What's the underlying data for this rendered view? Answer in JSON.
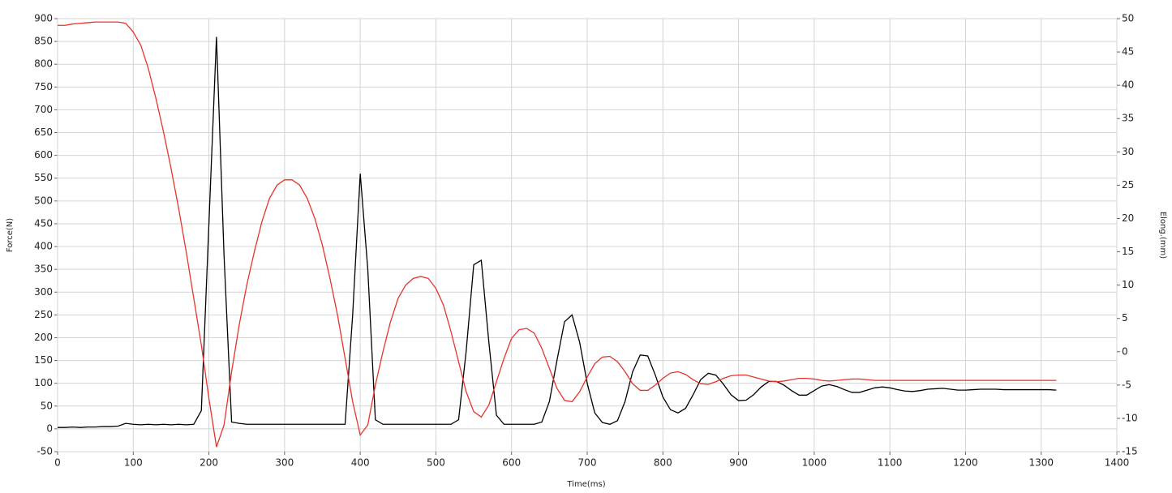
{
  "chart_data": {
    "type": "line",
    "x_label": "Time(ms)",
    "y_label": "Force(N)",
    "y2_label": "Elong.(mm)",
    "x": [
      0,
      10,
      20,
      30,
      40,
      50,
      60,
      70,
      80,
      90,
      100,
      110,
      120,
      130,
      140,
      150,
      160,
      170,
      180,
      190,
      200,
      210,
      220,
      230,
      240,
      250,
      260,
      270,
      280,
      290,
      300,
      310,
      320,
      330,
      340,
      350,
      360,
      370,
      380,
      390,
      400,
      410,
      420,
      430,
      440,
      450,
      460,
      470,
      480,
      490,
      500,
      510,
      520,
      530,
      540,
      550,
      560,
      570,
      580,
      590,
      600,
      610,
      620,
      630,
      640,
      650,
      660,
      670,
      680,
      690,
      700,
      710,
      720,
      730,
      740,
      750,
      760,
      770,
      780,
      790,
      800,
      810,
      820,
      830,
      840,
      850,
      860,
      870,
      880,
      890,
      900,
      910,
      920,
      930,
      940,
      950,
      960,
      970,
      980,
      990,
      1000,
      1010,
      1020,
      1030,
      1040,
      1050,
      1060,
      1070,
      1080,
      1090,
      1100,
      1110,
      1120,
      1130,
      1140,
      1150,
      1160,
      1170,
      1180,
      1190,
      1200,
      1210,
      1220,
      1230,
      1240,
      1250,
      1260,
      1270,
      1280,
      1290,
      1300,
      1310,
      1320
    ],
    "series": [
      {
        "color": "#000000",
        "values": [
          3,
          3,
          4,
          3,
          4,
          4,
          5,
          5,
          6,
          12,
          10,
          9,
          10,
          9,
          10,
          9,
          10,
          9,
          10,
          40,
          450,
          860,
          380,
          15,
          12,
          10,
          10,
          10,
          10,
          10,
          10,
          10,
          10,
          10,
          10,
          10,
          10,
          10,
          10,
          250,
          560,
          350,
          20,
          10,
          10,
          10,
          10,
          10,
          10,
          10,
          10,
          10,
          10,
          20,
          170,
          360,
          370,
          190,
          30,
          10,
          10,
          10,
          10,
          10,
          15,
          60,
          150,
          235,
          250,
          190,
          100,
          35,
          14,
          10,
          18,
          60,
          125,
          162,
          160,
          118,
          70,
          42,
          35,
          45,
          75,
          108,
          122,
          118,
          98,
          75,
          62,
          63,
          75,
          92,
          104,
          104,
          96,
          84,
          74,
          74,
          84,
          94,
          97,
          93,
          86,
          80,
          80,
          85,
          90,
          92,
          90,
          86,
          83,
          82,
          84,
          87,
          88,
          89,
          87,
          85,
          85,
          86,
          87,
          87,
          87,
          86,
          86,
          86,
          86,
          86,
          86,
          86,
          85
        ]
      },
      {
        "color": "#e8332a",
        "axis": "y2",
        "values": [
          49,
          49,
          49.2,
          49.3,
          49.4,
          49.5,
          49.5,
          49.5,
          49.5,
          49.3,
          48,
          46,
          42.5,
          38,
          33,
          27.5,
          21.5,
          15,
          8,
          1,
          -7,
          -14.3,
          -11,
          -3,
          4,
          10,
          15,
          19.5,
          23,
          25,
          25.8,
          25.8,
          25,
          23,
          20,
          16,
          11,
          5.5,
          -1,
          -7.5,
          -12.5,
          -11,
          -5,
          0,
          4.5,
          8,
          10,
          11,
          11.3,
          11,
          9.5,
          7,
          3,
          -1.5,
          -6,
          -9,
          -9.8,
          -8,
          -4.5,
          -1,
          2,
          3.3,
          3.5,
          2.8,
          0.5,
          -2.5,
          -5.5,
          -7.3,
          -7.5,
          -6,
          -3.8,
          -1.8,
          -0.8,
          -0.7,
          -1.5,
          -3,
          -4.8,
          -5.8,
          -5.8,
          -5,
          -4,
          -3.2,
          -3,
          -3.4,
          -4.2,
          -4.8,
          -4.9,
          -4.5,
          -4,
          -3.6,
          -3.5,
          -3.5,
          -3.8,
          -4.1,
          -4.4,
          -4.5,
          -4.4,
          -4.2,
          -4,
          -4,
          -4.1,
          -4.3,
          -4.4,
          -4.3,
          -4.2,
          -4.1,
          -4.1,
          -4.2,
          -4.3,
          -4.3,
          -4.3,
          -4.3,
          -4.3,
          -4.3,
          -4.3,
          -4.3,
          -4.3,
          -4.3,
          -4.3,
          -4.3,
          -4.3,
          -4.3,
          -4.3,
          -4.3,
          -4.3,
          -4.3,
          -4.3,
          -4.3,
          -4.3,
          -4.3,
          -4.3,
          -4.3,
          -4.3
        ]
      }
    ],
    "xlim": [
      0,
      1400
    ],
    "xticks": [
      0,
      100,
      200,
      300,
      400,
      500,
      600,
      700,
      800,
      900,
      1000,
      1100,
      1200,
      1300,
      1400
    ],
    "ylim": [
      -50,
      900
    ],
    "yticks": [
      -50,
      0,
      50,
      100,
      150,
      200,
      250,
      300,
      350,
      400,
      450,
      500,
      550,
      600,
      650,
      700,
      750,
      800,
      850,
      900
    ],
    "y2lim": [
      -15,
      50
    ],
    "y2ticks": [
      -15,
      -10,
      -5,
      0,
      5,
      10,
      15,
      20,
      25,
      30,
      35,
      40,
      45,
      50
    ],
    "grid": true
  }
}
